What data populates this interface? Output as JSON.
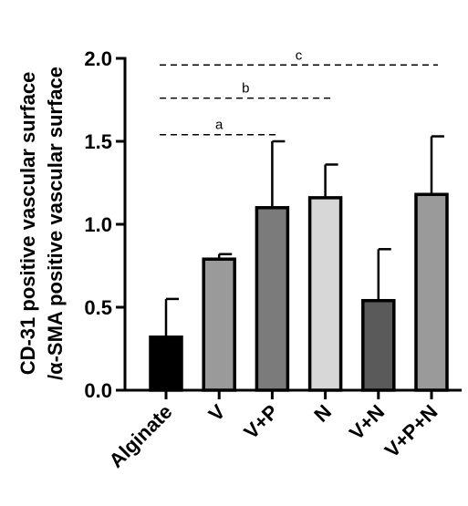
{
  "chart_data": {
    "type": "bar",
    "title": "",
    "xlabel": "",
    "ylabel_lines": [
      "CD-31 positive  vascular surface",
      "/α-SMA positive vascular surface"
    ],
    "categories": [
      "Alginate",
      "V",
      "V+P",
      "N",
      "V+N",
      "V+P+N"
    ],
    "values": [
      0.32,
      0.79,
      1.1,
      1.16,
      0.54,
      1.18
    ],
    "errors": [
      0.23,
      0.03,
      0.4,
      0.2,
      0.31,
      0.35
    ],
    "colors": [
      "#000000",
      "#9a9a9a",
      "#7b7b7b",
      "#d7d7d7",
      "#5a5a5a",
      "#9a9a9a"
    ],
    "ylim": [
      0,
      2.0
    ],
    "yticks": [
      "0.0",
      "0.5",
      "1.0",
      "1.5",
      "2.0"
    ],
    "ytick_values": [
      0,
      0.5,
      1.0,
      1.5,
      2.0
    ],
    "significance": [
      {
        "label": "a",
        "from": "Alginate",
        "to": "V+P",
        "y": 1.54
      },
      {
        "label": "b",
        "from": "Alginate",
        "to": "N",
        "y": 1.76
      },
      {
        "label": "c",
        "from": "Alginate",
        "to": "V+P+N",
        "y": 1.96
      }
    ],
    "grid": false,
    "legend": "none"
  }
}
